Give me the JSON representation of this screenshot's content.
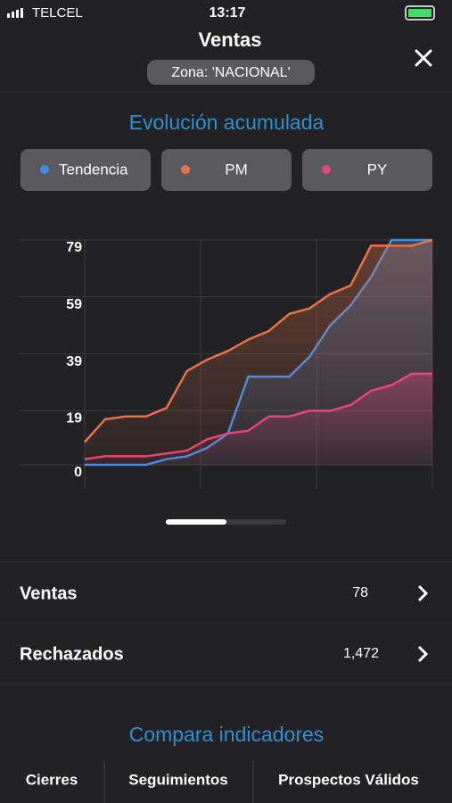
{
  "status_bar": {
    "carrier": "TELCEL",
    "time": "13:17"
  },
  "header": {
    "title": "Ventas",
    "zone": "Zona: 'NACIONAL'"
  },
  "section_title": "Evolución acumulada",
  "chart_data": {
    "type": "line",
    "categories": [
      null,
      null,
      null,
      null,
      null,
      null,
      null,
      null,
      null,
      null,
      null,
      null,
      null,
      null,
      null,
      null,
      null,
      null
    ],
    "series": [
      {
        "name": "Tendencia",
        "color": "#3d8ee8",
        "values": [
          0,
          0,
          0,
          0,
          2,
          3,
          6,
          11,
          31,
          31,
          31,
          38,
          49,
          56,
          66,
          79,
          79,
          79
        ]
      },
      {
        "name": "PM",
        "color": "#e8734a",
        "values": [
          8,
          16,
          17,
          17,
          20,
          33,
          37,
          40,
          44,
          47,
          53,
          55,
          60,
          63,
          77,
          77,
          77,
          79
        ]
      },
      {
        "name": "PY",
        "color": "#e8457a",
        "values": [
          2,
          3,
          3,
          3,
          4,
          5,
          9,
          11,
          12,
          17,
          17,
          19,
          19,
          21,
          26,
          28,
          32,
          32
        ]
      }
    ],
    "ylim": [
      0,
      79
    ],
    "yticks": [
      0,
      19,
      39,
      59,
      79
    ],
    "grid": true
  },
  "list": [
    {
      "label": "Ventas",
      "value": "78"
    },
    {
      "label": "Rechazados",
      "value": "1,472"
    }
  ],
  "compare": {
    "title": "Compara indicadores",
    "columns": [
      "Cierres",
      "Seguimientos",
      "Prospectos Válidos"
    ]
  }
}
